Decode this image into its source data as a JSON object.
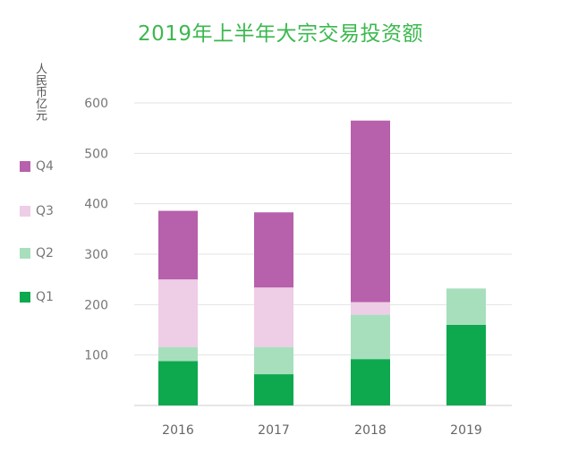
{
  "chart_data": {
    "type": "bar",
    "stacked": true,
    "title": "2019年上半年大宗交易投资额",
    "ylabel": "人民币亿元",
    "xlabel": "",
    "categories": [
      "2016",
      "2017",
      "2018",
      "2019"
    ],
    "ylim": [
      0,
      600
    ],
    "yticks": [
      100,
      200,
      300,
      400,
      500,
      600
    ],
    "grid": true,
    "legend_position": "left",
    "series": [
      {
        "name": "Q1",
        "color": "#0ea94f",
        "values": [
          88,
          62,
          92,
          160
        ]
      },
      {
        "name": "Q2",
        "color": "#a7dfbd",
        "values": [
          28,
          54,
          88,
          72
        ]
      },
      {
        "name": "Q3",
        "color": "#eecde6",
        "values": [
          134,
          118,
          25,
          0
        ]
      },
      {
        "name": "Q4",
        "color": "#b760ab",
        "values": [
          136,
          149,
          360,
          0
        ]
      }
    ]
  }
}
